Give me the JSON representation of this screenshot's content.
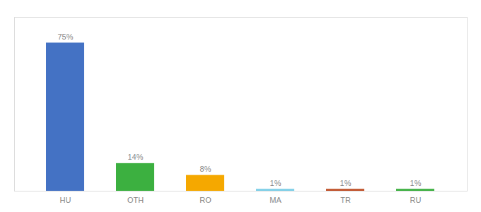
{
  "chart_data": {
    "type": "bar",
    "categories": [
      "HU",
      "OTH",
      "RO",
      "MA",
      "TR",
      "RU"
    ],
    "values": [
      75,
      14,
      8,
      1,
      1,
      1
    ],
    "value_labels": [
      "75%",
      "14%",
      "8%",
      "1%",
      "1%",
      "1%"
    ],
    "colors": [
      "#4472c4",
      "#3cb040",
      "#f5a800",
      "#7ecfe8",
      "#c0522a",
      "#3cb040"
    ],
    "data_labels": true,
    "ylim": [
      0,
      88
    ],
    "tick_labels": "x"
  }
}
